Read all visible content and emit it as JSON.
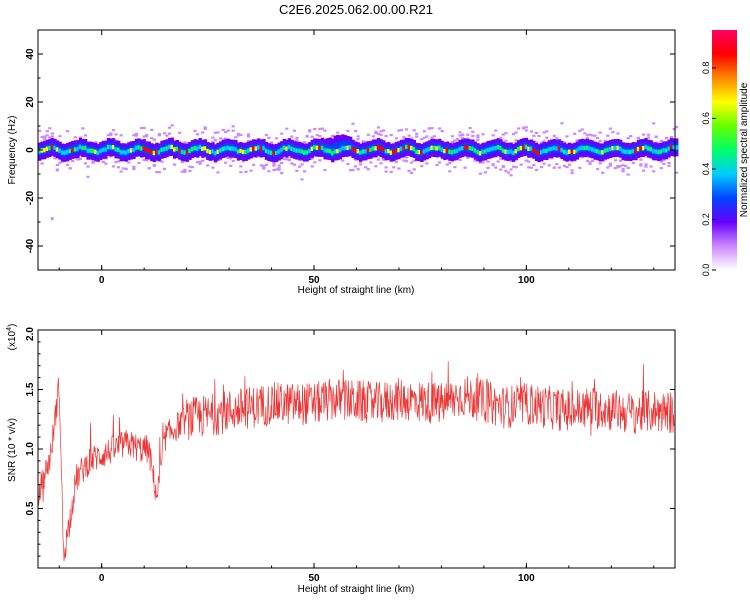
{
  "title": "C2E6.2025.062.00.00.R21",
  "colors": {
    "background": "#ffffff",
    "axis": "#000000",
    "snr_line": "#ee3333"
  },
  "chart_data": [
    {
      "type": "heatmap",
      "name": "spectrogram",
      "xlabel": "Height of straight line (km)",
      "ylabel": "Frequency (Hz)",
      "xlim": [
        -15,
        135
      ],
      "ylim": [
        -50,
        50
      ],
      "xticks": [
        0,
        50,
        100
      ],
      "yticks": [
        -40,
        -20,
        0,
        20,
        40
      ],
      "grid": false,
      "band_center_hz": 0,
      "band_halfwidth_hz": 5,
      "peak_bump": {
        "x_km": 55,
        "freq_hz": 8
      },
      "colorbar": {
        "label": "Normalized spectral amplitude",
        "range": [
          0.0,
          0.95
        ],
        "ticks": [
          0.0,
          0.2,
          0.4,
          0.6,
          0.8
        ],
        "tick_labels": [
          "0.0",
          "0.2",
          "0.4",
          "0.6",
          "0.8"
        ],
        "colormap": [
          "#ffffff",
          "#cc88ff",
          "#6600ff",
          "#0044ff",
          "#00ccff",
          "#00ff66",
          "#66ff00",
          "#ffff00",
          "#ff8800",
          "#ff0000",
          "#ff0066"
        ]
      }
    },
    {
      "type": "line",
      "name": "snr",
      "xlabel": "Height of straight line (km)",
      "ylabel": "SNR (10 * v/v)",
      "y_multiplier_label": "(x10",
      "y_multiplier_exp": "4",
      "y_multiplier_close": ")",
      "xlim": [
        -15,
        135
      ],
      "ylim": [
        0,
        2.0
      ],
      "xticks": [
        0,
        50,
        100
      ],
      "yticks": [
        0.5,
        1.0,
        1.5,
        2.0
      ],
      "grid": false,
      "series": [
        {
          "color": "#ee3333",
          "x": [
            -15,
            -12,
            -10,
            -9,
            -8,
            -6,
            -3,
            0,
            3,
            6,
            9,
            11,
            13,
            15,
            18,
            20,
            25,
            30,
            35,
            40,
            45,
            50,
            55,
            60,
            65,
            70,
            75,
            80,
            85,
            90,
            95,
            100,
            105,
            110,
            115,
            120,
            125,
            130,
            135
          ],
          "y": [
            0.6,
            0.95,
            1.55,
            0.1,
            0.3,
            0.75,
            0.9,
            0.95,
            1.0,
            1.05,
            1.0,
            1.0,
            0.6,
            1.1,
            1.2,
            1.25,
            1.28,
            1.32,
            1.35,
            1.38,
            1.38,
            1.38,
            1.42,
            1.4,
            1.38,
            1.42,
            1.4,
            1.38,
            1.45,
            1.4,
            1.35,
            1.38,
            1.35,
            1.32,
            1.35,
            1.33,
            1.3,
            1.32,
            1.3
          ]
        }
      ]
    }
  ]
}
